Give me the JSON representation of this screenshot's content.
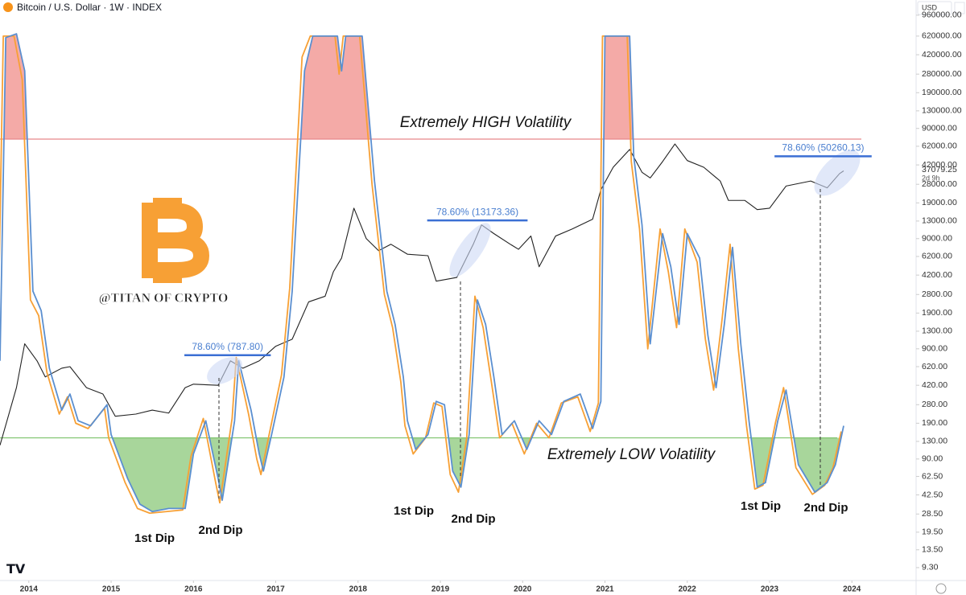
{
  "chart_data": {
    "type": "line",
    "title": "Bitcoin / U.S. Dollar · 1W · INDEX",
    "currency": "USD",
    "log_scale": true,
    "xlim": [
      2013.65,
      2024.78
    ],
    "xticks": [
      2014,
      2015,
      2016,
      2017,
      2018,
      2019,
      2020,
      2021,
      2022,
      2023,
      2024
    ],
    "ylim": [
      7.1,
      1318000
    ],
    "yticks": [
      {
        "value": 960000,
        "label": "960000.00"
      },
      {
        "value": 620000,
        "label": "620000.00"
      },
      {
        "value": 420000,
        "label": "420000.00"
      },
      {
        "value": 280000,
        "label": "280000.00"
      },
      {
        "value": 190000,
        "label": "190000.00"
      },
      {
        "value": 130000,
        "label": "130000.00"
      },
      {
        "value": 90000,
        "label": "90000.00"
      },
      {
        "value": 62000,
        "label": "62000.00"
      },
      {
        "value": 42000,
        "label": "42000.00"
      },
      {
        "value": 28000,
        "label": "28000.00"
      },
      {
        "value": 19000,
        "label": "19000.00"
      },
      {
        "value": 13000,
        "label": "13000.00"
      },
      {
        "value": 9000,
        "label": "9000.00"
      },
      {
        "value": 6200,
        "label": "6200.00"
      },
      {
        "value": 4200,
        "label": "4200.00"
      },
      {
        "value": 2800,
        "label": "2800.00"
      },
      {
        "value": 1900,
        "label": "1900.00"
      },
      {
        "value": 1300,
        "label": "1300.00"
      },
      {
        "value": 900,
        "label": "900.00"
      },
      {
        "value": 620,
        "label": "620.00"
      },
      {
        "value": 420,
        "label": "420.00"
      },
      {
        "value": 280,
        "label": "280.00"
      },
      {
        "value": 190,
        "label": "190.00"
      },
      {
        "value": 130,
        "label": "130.00"
      },
      {
        "value": 90,
        "label": "90.00"
      },
      {
        "value": 62.5,
        "label": "62.50"
      },
      {
        "value": 42.5,
        "label": "42.50"
      },
      {
        "value": 28.5,
        "label": "28.50"
      },
      {
        "value": 19.5,
        "label": "19.50"
      },
      {
        "value": 13.5,
        "label": "13.50"
      },
      {
        "value": 9.3,
        "label": "9.30"
      }
    ],
    "current_price": 37079.25,
    "current_price_countdown": "2d 9h",
    "high_threshold": 72000,
    "low_threshold": 140,
    "series": [
      {
        "color": "#222222",
        "x": [
          2013.65,
          2013.85,
          2013.95,
          2014.1,
          2014.2,
          2014.4,
          2014.5,
          2014.7,
          2014.9,
          2015.05,
          2015.3,
          2015.5,
          2015.7,
          2015.9,
          2016.0,
          2016.3,
          2016.45,
          2016.6,
          2016.8,
          2017.0,
          2017.2,
          2017.4,
          2017.6,
          2017.7,
          2017.8,
          2017.95,
          2018.1,
          2018.25,
          2018.4,
          2018.6,
          2018.85,
          2018.95,
          2019.2,
          2019.4,
          2019.5,
          2019.65,
          2019.85,
          2019.95,
          2020.1,
          2020.2,
          2020.4,
          2020.6,
          2020.85,
          2020.95,
          2021.1,
          2021.3,
          2021.45,
          2021.55,
          2021.7,
          2021.85,
          2022.0,
          2022.2,
          2022.4,
          2022.5,
          2022.7,
          2022.85,
          2023.0,
          2023.2,
          2023.5,
          2023.7,
          2023.85,
          2023.9
        ],
        "values": [
          120,
          400,
          1000,
          700,
          500,
          600,
          620,
          400,
          350,
          220,
          230,
          250,
          235,
          400,
          430,
          420,
          700,
          600,
          700,
          950,
          1100,
          2400,
          2700,
          4500,
          6000,
          17000,
          9000,
          7000,
          8000,
          6500,
          6300,
          3700,
          4000,
          8000,
          12000,
          10000,
          8000,
          7200,
          9500,
          5000,
          9500,
          11000,
          13500,
          25000,
          40000,
          58000,
          36000,
          32000,
          45000,
          65000,
          46000,
          40000,
          30000,
          20000,
          20000,
          16500,
          17000,
          27000,
          30000,
          26000,
          35000,
          37079
        ]
      },
      {
        "color": "#f7a035",
        "x": [
          2013.62,
          2013.69,
          2013.82,
          2013.92,
          2014.02,
          2014.12,
          2014.22,
          2014.37,
          2014.47,
          2014.57,
          2014.72,
          2014.92,
          2014.97,
          2015.17,
          2015.32,
          2015.47,
          2015.67,
          2015.87,
          2015.97,
          2016.12,
          2016.27,
          2016.32,
          2016.47,
          2016.52,
          2016.67,
          2016.77,
          2016.82,
          2016.92,
          2017.07,
          2017.17,
          2017.32,
          2017.42,
          2017.72,
          2017.77,
          2017.82,
          2018.02,
          2018.17,
          2018.32,
          2018.42,
          2018.52,
          2018.57,
          2018.67,
          2018.82,
          2018.92,
          2019.02,
          2019.12,
          2019.22,
          2019.32,
          2019.42,
          2019.52,
          2019.62,
          2019.72,
          2019.87,
          2020.02,
          2020.17,
          2020.32,
          2020.47,
          2020.67,
          2020.82,
          2020.92,
          2020.97,
          2021.27,
          2021.32,
          2021.42,
          2021.52,
          2021.67,
          2021.77,
          2021.87,
          2021.97,
          2022.12,
          2022.22,
          2022.32,
          2022.42,
          2022.52,
          2022.62,
          2022.72,
          2022.82,
          2022.92,
          2023.07,
          2023.17,
          2023.32,
          2023.52,
          2023.67,
          2023.77,
          2023.87
        ],
        "values": [
          700,
          620000,
          620000,
          250000,
          2500,
          1800,
          550,
          230,
          330,
          190,
          170,
          260,
          140,
          55,
          32,
          29,
          30,
          31,
          95,
          210,
          55,
          36,
          210,
          750,
          230,
          90,
          65,
          150,
          520,
          3200,
          400000,
          620000,
          620000,
          280000,
          620000,
          620000,
          28000,
          2800,
          1400,
          450,
          180,
          100,
          140,
          290,
          270,
          65,
          45,
          140,
          2700,
          1400,
          450,
          140,
          190,
          100,
          190,
          140,
          290,
          330,
          160,
          290,
          620000,
          620000,
          45000,
          11000,
          900,
          11000,
          4500,
          1400,
          11000,
          5500,
          1100,
          380,
          1600,
          8000,
          900,
          180,
          48,
          52,
          190,
          400,
          75,
          43,
          52,
          75,
          160
        ]
      },
      {
        "color": "#5b8fd0",
        "x": [
          2013.65,
          2013.72,
          2013.85,
          2013.95,
          2014.05,
          2014.15,
          2014.25,
          2014.4,
          2014.5,
          2014.6,
          2014.75,
          2014.95,
          2015.0,
          2015.2,
          2015.35,
          2015.5,
          2015.7,
          2015.9,
          2016.0,
          2016.15,
          2016.3,
          2016.35,
          2016.5,
          2016.55,
          2016.7,
          2016.8,
          2016.85,
          2016.95,
          2017.1,
          2017.2,
          2017.35,
          2017.45,
          2017.75,
          2017.8,
          2017.85,
          2018.05,
          2018.2,
          2018.35,
          2018.45,
          2018.55,
          2018.6,
          2018.7,
          2018.85,
          2018.95,
          2019.05,
          2019.15,
          2019.25,
          2019.35,
          2019.45,
          2019.55,
          2019.65,
          2019.75,
          2019.9,
          2020.05,
          2020.2,
          2020.35,
          2020.5,
          2020.7,
          2020.85,
          2020.95,
          2021.0,
          2021.3,
          2021.35,
          2021.45,
          2021.55,
          2021.7,
          2021.8,
          2021.9,
          2022.0,
          2022.15,
          2022.25,
          2022.35,
          2022.45,
          2022.55,
          2022.65,
          2022.75,
          2022.85,
          2022.95,
          2023.1,
          2023.2,
          2023.35,
          2023.55,
          2023.7,
          2023.8,
          2023.9
        ],
        "values": [
          700,
          600000,
          650000,
          300000,
          3000,
          2000,
          600,
          250,
          350,
          200,
          180,
          280,
          150,
          60,
          35,
          30,
          32,
          32,
          100,
          200,
          60,
          38,
          200,
          700,
          250,
          100,
          70,
          150,
          500,
          3000,
          300000,
          620000,
          620000,
          300000,
          620000,
          620000,
          30000,
          3000,
          1500,
          500,
          200,
          110,
          150,
          300,
          280,
          70,
          50,
          150,
          2500,
          1500,
          500,
          150,
          200,
          110,
          200,
          150,
          300,
          350,
          170,
          300,
          620000,
          620000,
          50000,
          12000,
          1000,
          10000,
          5000,
          1500,
          10000,
          6000,
          1200,
          400,
          1500,
          7500,
          1000,
          200,
          50,
          55,
          200,
          380,
          80,
          45,
          55,
          80,
          180
        ]
      }
    ],
    "fib_levels": [
      {
        "x": [
          2015.89,
          2016.94
        ],
        "value": 787.8,
        "label": "78.60% (787.80)"
      },
      {
        "x": [
          2018.84,
          2020.06
        ],
        "value": 13173.36,
        "label": "78.60% (13173.36)"
      },
      {
        "x": [
          2023.06,
          2024.24
        ],
        "value": 50260.13,
        "label": "78.60% (50260.13)"
      }
    ],
    "annotations": {
      "high": "Extremely HIGH Volatility",
      "low": "Extremely LOW Volatility",
      "watermark": "@TITAN OF CRYPTO"
    },
    "dip_labels": [
      "1st Dip",
      "2nd Dip",
      "1st Dip",
      "2nd Dip",
      "1st Dip",
      "2nd Dip"
    ]
  }
}
